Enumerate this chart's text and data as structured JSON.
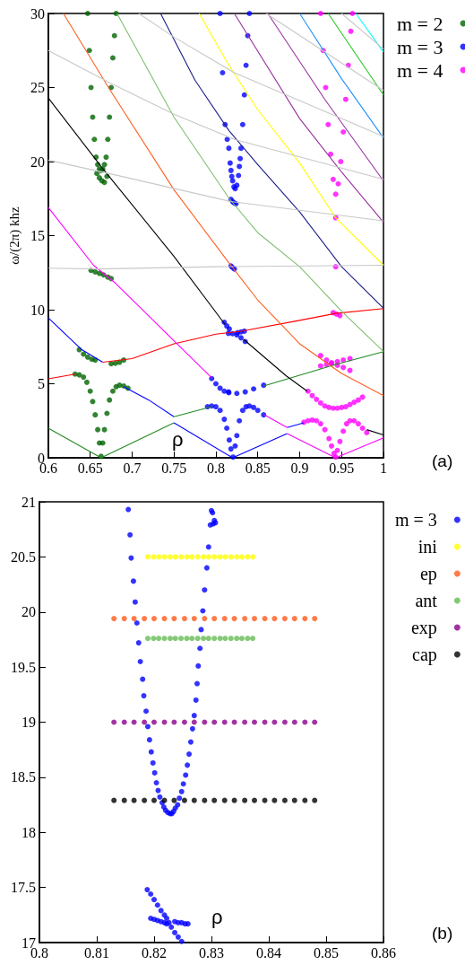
{
  "chart_data": [
    {
      "type": "line",
      "xlabel": "ρ",
      "ylabel": "ω/(2π) khz",
      "annotations": [
        "(a)"
      ],
      "xlim": [
        0.6,
        1
      ],
      "ylim": [
        0,
        30
      ],
      "xticks": [
        0.6,
        0.65,
        0.7,
        0.75,
        0.8,
        0.85,
        0.9,
        0.95,
        1
      ],
      "yticks": [
        0,
        5,
        10,
        15,
        20,
        25,
        30
      ],
      "legend": "right",
      "marker": "none",
      "series": [
        {
          "color": "#228b22",
          "x": [
            0.6,
            0.663,
            0.75
          ],
          "values": [
            2.0,
            0,
            2.36
          ]
        },
        {
          "color": "#0000ff",
          "x": [
            0.75,
            0.82,
            0.885
          ],
          "values": [
            2.36,
            0,
            1.64
          ]
        },
        {
          "color": "#ff00ff",
          "x": [
            0.885,
            0.943,
            1.0
          ],
          "values": [
            1.64,
            0,
            1.35
          ]
        },
        {
          "color": "#ff0000",
          "x": [
            0.6,
            0.632
          ],
          "values": [
            5.33,
            5.65
          ]
        },
        {
          "color": "#0000ff",
          "x": [
            0.69,
            0.72,
            0.75
          ],
          "values": [
            4.8,
            3.9,
            2.77
          ]
        },
        {
          "color": "#228b22",
          "x": [
            0.75,
            0.795
          ],
          "values": [
            2.77,
            3.45
          ]
        },
        {
          "color": "#ff00ff",
          "x": [
            0.858,
            0.885
          ],
          "values": [
            2.9,
            2.05
          ]
        },
        {
          "color": "#0000ff",
          "x": [
            0.885,
            0.905
          ],
          "values": [
            2.05,
            2.36
          ]
        },
        {
          "color": "#000000",
          "x": [
            0.98,
            1.0
          ],
          "values": [
            1.9,
            1.55
          ]
        },
        {
          "color": "#0000ff",
          "x": [
            0.6,
            0.64,
            0.665
          ],
          "values": [
            9.45,
            7.3,
            6.45
          ]
        },
        {
          "color": "#ff0000",
          "x": [
            0.665,
            0.7,
            0.75,
            0.8,
            0.83,
            0.9,
            0.943,
            1.0
          ],
          "values": [
            6.45,
            6.7,
            7.7,
            8.35,
            8.55,
            9.28,
            9.75,
            10.08
          ]
        },
        {
          "color": "#ff00ff",
          "x": [
            0.6,
            0.654,
            0.68,
            0.75,
            0.795
          ],
          "values": [
            16.9,
            13.0,
            11.8,
            7.9,
            5.4
          ]
        },
        {
          "color": "#228b22",
          "x": [
            0.857,
            0.9,
            0.943,
            1.0
          ],
          "values": [
            4.85,
            5.57,
            6.3,
            7.17
          ]
        },
        {
          "color": "#000000",
          "x": [
            0.6,
            0.664,
            0.75,
            0.811
          ],
          "values": [
            24.3,
            19.6,
            13.6,
            9.0
          ]
        },
        {
          "color": "#000000",
          "x": [
            0.833,
            0.884,
            0.909
          ],
          "values": [
            8.0,
            5.53,
            4.5
          ]
        },
        {
          "color": "#ff5f1f",
          "x": [
            0.618,
            0.674,
            0.75,
            0.815,
            0.85,
            0.9,
            0.95,
            1.0
          ],
          "values": [
            30,
            24.8,
            18.1,
            13.2,
            10.65,
            7.7,
            5.7,
            4.2
          ]
        },
        {
          "color": "#7fbf6f",
          "x": [
            0.682,
            0.75,
            0.816,
            0.85,
            0.9,
            0.95,
            1.0
          ],
          "values": [
            30,
            23.0,
            17.5,
            15.2,
            12.9,
            9.9,
            7.17
          ]
        },
        {
          "color": "#1c1c8c",
          "x": [
            0.734,
            0.775,
            0.8155,
            0.85,
            0.9,
            0.95,
            1.0
          ],
          "values": [
            30,
            25.5,
            22.1,
            19.8,
            16.6,
            12.9,
            10.1
          ]
        },
        {
          "color": "#ffff00",
          "x": [
            0.78,
            0.8155,
            0.85,
            0.9,
            0.943,
            1.0
          ],
          "values": [
            30,
            26.5,
            23.5,
            19.9,
            16.2,
            13.0
          ]
        },
        {
          "color": "#9932a0",
          "x": [
            0.822,
            0.9,
            0.95,
            1.0
          ],
          "values": [
            30,
            22.9,
            19.3,
            15.9
          ]
        },
        {
          "color": "#9932a0",
          "x": [
            0.862,
            0.93,
            1.0
          ],
          "values": [
            30,
            24.2,
            18.7
          ]
        },
        {
          "color": "#1e90ff",
          "x": [
            0.9,
            0.95,
            1.0
          ],
          "values": [
            30,
            25.6,
            21.6
          ]
        },
        {
          "color": "#22cc22",
          "x": [
            0.934,
            1.0
          ],
          "values": [
            30,
            24.5
          ]
        },
        {
          "color": "#00ffff",
          "x": [
            0.967,
            1.0
          ],
          "values": [
            30,
            27.4
          ]
        },
        {
          "color": "#c8c8c8",
          "x": [
            0.6,
            0.66,
            0.8,
            1.0
          ],
          "values": [
            12.8,
            12.75,
            12.9,
            13.0
          ]
        },
        {
          "color": "#c8c8c8",
          "x": [
            0.6,
            0.68,
            0.818,
            1.0
          ],
          "values": [
            20.1,
            19.1,
            17.3,
            16.0
          ]
        },
        {
          "color": "#c8c8c8",
          "x": [
            0.6,
            0.674,
            0.75,
            0.822,
            1.0
          ],
          "values": [
            27.5,
            25.3,
            23.2,
            21.5,
            18.8
          ]
        },
        {
          "color": "#c8c8c8",
          "x": [
            0.708,
            0.75,
            0.822,
            1.0
          ],
          "values": [
            30,
            28.4,
            26.0,
            21.7
          ]
        },
        {
          "color": "#c8c8c8",
          "x": [
            0.86,
            1.0
          ],
          "values": [
            30,
            24.8
          ]
        },
        {
          "color": "#c8c8c8",
          "x": [
            0.95,
            1.0
          ],
          "values": [
            30,
            27.6
          ]
        },
        {
          "type": "scatter",
          "marker": "circle",
          "name": "m = 2",
          "color": "#006400",
          "x": [
            0.647,
            0.649,
            0.651,
            0.653,
            0.655,
            0.657,
            0.659,
            0.661,
            0.663,
            0.665,
            0.667,
            0.669,
            0.671,
            0.673,
            0.675,
            0.677,
            0.679,
            0.681,
            0.658,
            0.661,
            0.664,
            0.667,
            0.67,
            0.651,
            0.656,
            0.661,
            0.666,
            0.671,
            0.675,
            0.637,
            0.642,
            0.647,
            0.652,
            0.656,
            0.675,
            0.68,
            0.685,
            0.69,
            0.632,
            0.637,
            0.642,
            0.646,
            0.65,
            0.653,
            0.656,
            0.659,
            0.661,
            0.663,
            0.665,
            0.667,
            0.67,
            0.673,
            0.677,
            0.681,
            0.685,
            0.69,
            0.695
          ],
          "values": [
            30,
            27.5,
            25,
            23,
            21.5,
            20.3,
            19.8,
            19.5,
            19.4,
            19.5,
            19.8,
            20.3,
            21.5,
            23,
            25,
            27,
            28.5,
            30,
            19.2,
            18.9,
            18.7,
            18.6,
            19.0,
            12.65,
            12.55,
            12.45,
            12.35,
            12.2,
            12.1,
            7.3,
            7.0,
            6.8,
            6.65,
            6.6,
            6.35,
            6.38,
            6.45,
            6.6,
            5.65,
            5.6,
            5.45,
            5.1,
            4.5,
            3.8,
            2.9,
            1.9,
            1.0,
            0.1,
            1.0,
            1.9,
            3.0,
            3.9,
            4.5,
            4.8,
            4.9,
            4.85,
            4.7
          ]
        },
        {
          "type": "scatter",
          "marker": "circle",
          "name": "m = 3",
          "color": "#0000ff",
          "x": [
            0.805,
            0.808,
            0.811,
            0.8135,
            0.8155,
            0.817,
            0.818,
            0.819,
            0.82,
            0.8215,
            0.823,
            0.825,
            0.827,
            0.828,
            0.829,
            0.83,
            0.832,
            0.834,
            0.836,
            0.838,
            0.84,
            0.818,
            0.82,
            0.822,
            0.824,
            0.818,
            0.82,
            0.822,
            0.81,
            0.813,
            0.816,
            0.826,
            0.83,
            0.834,
            0.815,
            0.82,
            0.825,
            0.83,
            0.835,
            0.795,
            0.8,
            0.805,
            0.81,
            0.815,
            0.8155,
            0.825,
            0.835,
            0.845,
            0.857,
            0.79,
            0.795,
            0.8,
            0.805,
            0.81,
            0.813,
            0.816,
            0.818,
            0.8205,
            0.823,
            0.825,
            0.828,
            0.832,
            0.836,
            0.84,
            0.845,
            0.85,
            0.857
          ],
          "values": [
            30,
            26,
            22.5,
            21.5,
            20.9,
            19.9,
            19.4,
            19.0,
            18.7,
            18.3,
            18.17,
            18.4,
            19.06,
            19.67,
            20.2,
            20.9,
            22.5,
            24.5,
            26.5,
            28.5,
            30,
            17.45,
            17.3,
            17.2,
            17.15,
            12.95,
            12.85,
            12.75,
            9.15,
            8.9,
            8.7,
            8.45,
            8.5,
            8.55,
            8.4,
            8.38,
            8.3,
            8.1,
            7.85,
            5.35,
            5.0,
            4.7,
            4.5,
            4.45,
            4.4,
            4.35,
            4.45,
            4.65,
            4.9,
            3.45,
            3.5,
            3.45,
            3.2,
            2.6,
            2.0,
            1.2,
            0.6,
            0.05,
            0.8,
            1.5,
            2.5,
            3.2,
            3.45,
            3.5,
            3.4,
            3.2,
            2.9
          ]
        },
        {
          "type": "scatter",
          "marker": "circle",
          "name": "m = 4",
          "color": "#ff00ff",
          "x": [
            0.925,
            0.928,
            0.931,
            0.934,
            0.937,
            0.94,
            0.943,
            0.946,
            0.949,
            0.952,
            0.955,
            0.958,
            0.961,
            0.963,
            0.943,
            0.943,
            0.94,
            0.944,
            0.948,
            0.925,
            0.932,
            0.938,
            0.945,
            0.952,
            0.96,
            0.925,
            0.932,
            0.938,
            0.945,
            0.952,
            0.96,
            0.91,
            0.915,
            0.92,
            0.925,
            0.93,
            0.935,
            0.94,
            0.945,
            0.95,
            0.955,
            0.96,
            0.965,
            0.97,
            0.975,
            0.905,
            0.91,
            0.915,
            0.92,
            0.925,
            0.93,
            0.935,
            0.938,
            0.941,
            0.943,
            0.945,
            0.948,
            0.952,
            0.956,
            0.96,
            0.965,
            0.97,
            0.975,
            0.98
          ],
          "values": [
            30,
            27.5,
            25,
            22.5,
            20.5,
            18.8,
            17.8,
            18.5,
            20.0,
            22.0,
            24.2,
            26.5,
            28.8,
            30,
            16.2,
            12.9,
            9.8,
            9.7,
            9.6,
            6.9,
            6.6,
            6.4,
            6.25,
            6.1,
            5.9,
            6.2,
            6.3,
            6.4,
            6.5,
            6.6,
            6.7,
            4.5,
            4.2,
            3.95,
            3.7,
            3.5,
            3.4,
            3.35,
            3.35,
            3.4,
            3.45,
            3.6,
            3.75,
            3.9,
            4.1,
            2.4,
            2.5,
            2.55,
            2.5,
            2.3,
            1.9,
            1.3,
            0.8,
            0.3,
            0.05,
            0.5,
            1.1,
            1.8,
            2.3,
            2.5,
            2.5,
            2.3,
            2.0,
            1.7
          ]
        }
      ]
    },
    {
      "type": "scatter",
      "xlabel": "ρ",
      "annotations": [
        "(b)"
      ],
      "xlim": [
        0.8,
        0.86
      ],
      "ylim": [
        17,
        21
      ],
      "xticks": [
        0.8,
        0.81,
        0.82,
        0.83,
        0.84,
        0.85,
        0.86
      ],
      "yticks": [
        17,
        17.5,
        18,
        18.5,
        19,
        19.5,
        20,
        20.5,
        21
      ],
      "legend": "right",
      "marker": "circle",
      "series": [
        {
          "name": "m = 3",
          "color": "#0000ff",
          "x": [
            0.8155,
            0.8158,
            0.816,
            0.8164,
            0.8167,
            0.817,
            0.8173,
            0.8176,
            0.818,
            0.8182,
            0.8186,
            0.8189,
            0.8192,
            0.8195,
            0.8198,
            0.8201,
            0.8204,
            0.8207,
            0.821,
            0.8214,
            0.8217,
            0.822,
            0.8224,
            0.8228,
            0.8231,
            0.8234,
            0.8237,
            0.8241,
            0.8244,
            0.8248,
            0.8251,
            0.8255,
            0.8258,
            0.8261,
            0.8264,
            0.8267,
            0.827,
            0.8273,
            0.8275,
            0.8277,
            0.828,
            0.8282,
            0.8285,
            0.8288,
            0.8292,
            0.8295,
            0.8298,
            0.83,
            0.8302,
            0.8303,
            0.8305,
            0.8307,
            0.8188,
            0.8194,
            0.82,
            0.8206,
            0.8212,
            0.8218,
            0.8222,
            0.8226,
            0.823,
            0.8236,
            0.8242,
            0.8248,
            0.8194,
            0.82,
            0.8206,
            0.8212,
            0.8218,
            0.8222,
            0.8236,
            0.8242,
            0.8248,
            0.8254,
            0.8259
          ],
          "values": [
            20.93,
            20.7,
            20.49,
            20.28,
            20.09,
            19.9,
            19.72,
            19.55,
            19.39,
            19.24,
            19.1,
            18.96,
            18.84,
            18.73,
            18.63,
            18.54,
            18.45,
            18.38,
            18.32,
            18.27,
            18.23,
            18.2,
            18.18,
            18.17,
            18.17,
            18.19,
            18.22,
            18.25,
            18.31,
            18.37,
            18.44,
            18.52,
            18.61,
            18.71,
            18.82,
            18.94,
            19.06,
            19.2,
            19.35,
            19.51,
            19.67,
            19.84,
            20.01,
            20.2,
            20.4,
            20.59,
            20.79,
            20.92,
            20.9,
            20.8,
            20.83,
            20.81,
            17.48,
            17.44,
            17.39,
            17.34,
            17.29,
            17.25,
            17.22,
            17.18,
            17.14,
            17.09,
            17.05,
            17.01,
            17.22,
            17.21,
            17.2,
            17.19,
            17.18,
            17.17,
            17.19,
            17.18,
            17.18,
            17.17,
            17.17
          ]
        },
        {
          "name": "ini",
          "color": "#ffff00",
          "x": [
            0.8189,
            0.8199,
            0.8208,
            0.8218,
            0.8228,
            0.8237,
            0.8247,
            0.8257,
            0.8266,
            0.8276,
            0.8286,
            0.8295,
            0.8305,
            0.8315,
            0.8324,
            0.8334,
            0.8344,
            0.8353,
            0.8363,
            0.8372
          ],
          "values": [
            20.5,
            20.5,
            20.5,
            20.5,
            20.5,
            20.5,
            20.5,
            20.5,
            20.5,
            20.5,
            20.5,
            20.5,
            20.5,
            20.5,
            20.5,
            20.5,
            20.5,
            20.5,
            20.5,
            20.5
          ]
        },
        {
          "name": "ep",
          "color": "#ff5a1a",
          "x": [
            0.813,
            0.8148,
            0.8165,
            0.8183,
            0.82,
            0.8218,
            0.8235,
            0.8253,
            0.827,
            0.8288,
            0.8305,
            0.8323,
            0.834,
            0.8358,
            0.8375,
            0.8393,
            0.841,
            0.8428,
            0.8445,
            0.8463,
            0.848
          ],
          "values": [
            19.94,
            19.94,
            19.94,
            19.94,
            19.94,
            19.94,
            19.94,
            19.94,
            19.94,
            19.94,
            19.94,
            19.94,
            19.94,
            19.94,
            19.94,
            19.94,
            19.94,
            19.94,
            19.94,
            19.94,
            19.94
          ]
        },
        {
          "name": "ant",
          "color": "#66bb55",
          "x": [
            0.8189,
            0.8199,
            0.8208,
            0.8218,
            0.8228,
            0.8237,
            0.8247,
            0.8257,
            0.8266,
            0.8276,
            0.8286,
            0.8295,
            0.8305,
            0.8315,
            0.8324,
            0.8334,
            0.8344,
            0.8353,
            0.8363,
            0.8372
          ],
          "values": [
            19.76,
            19.76,
            19.76,
            19.76,
            19.76,
            19.76,
            19.76,
            19.76,
            19.76,
            19.76,
            19.76,
            19.76,
            19.76,
            19.76,
            19.76,
            19.76,
            19.76,
            19.76,
            19.76,
            19.76
          ]
        },
        {
          "name": "exp",
          "color": "#8b008b",
          "x": [
            0.813,
            0.8148,
            0.8165,
            0.8183,
            0.82,
            0.8218,
            0.8235,
            0.8253,
            0.827,
            0.8288,
            0.8305,
            0.8323,
            0.834,
            0.8358,
            0.8375,
            0.8393,
            0.841,
            0.8428,
            0.8445,
            0.8463,
            0.848
          ],
          "values": [
            19.0,
            19.0,
            19.0,
            19.0,
            19.0,
            19.0,
            19.0,
            19.0,
            19.0,
            19.0,
            19.0,
            19.0,
            19.0,
            19.0,
            19.0,
            19.0,
            19.0,
            19.0,
            19.0,
            19.0,
            19.0
          ]
        },
        {
          "name": "cap",
          "color": "#000000",
          "x": [
            0.813,
            0.8148,
            0.8165,
            0.8183,
            0.82,
            0.8218,
            0.8235,
            0.8253,
            0.827,
            0.8288,
            0.8305,
            0.8323,
            0.834,
            0.8358,
            0.8375,
            0.8393,
            0.841,
            0.8428,
            0.8445,
            0.8463,
            0.848
          ],
          "values": [
            18.29,
            18.29,
            18.29,
            18.29,
            18.29,
            18.29,
            18.29,
            18.29,
            18.29,
            18.29,
            18.29,
            18.29,
            18.29,
            18.29,
            18.29,
            18.29,
            18.29,
            18.29,
            18.29,
            18.29,
            18.29
          ]
        }
      ]
    }
  ]
}
